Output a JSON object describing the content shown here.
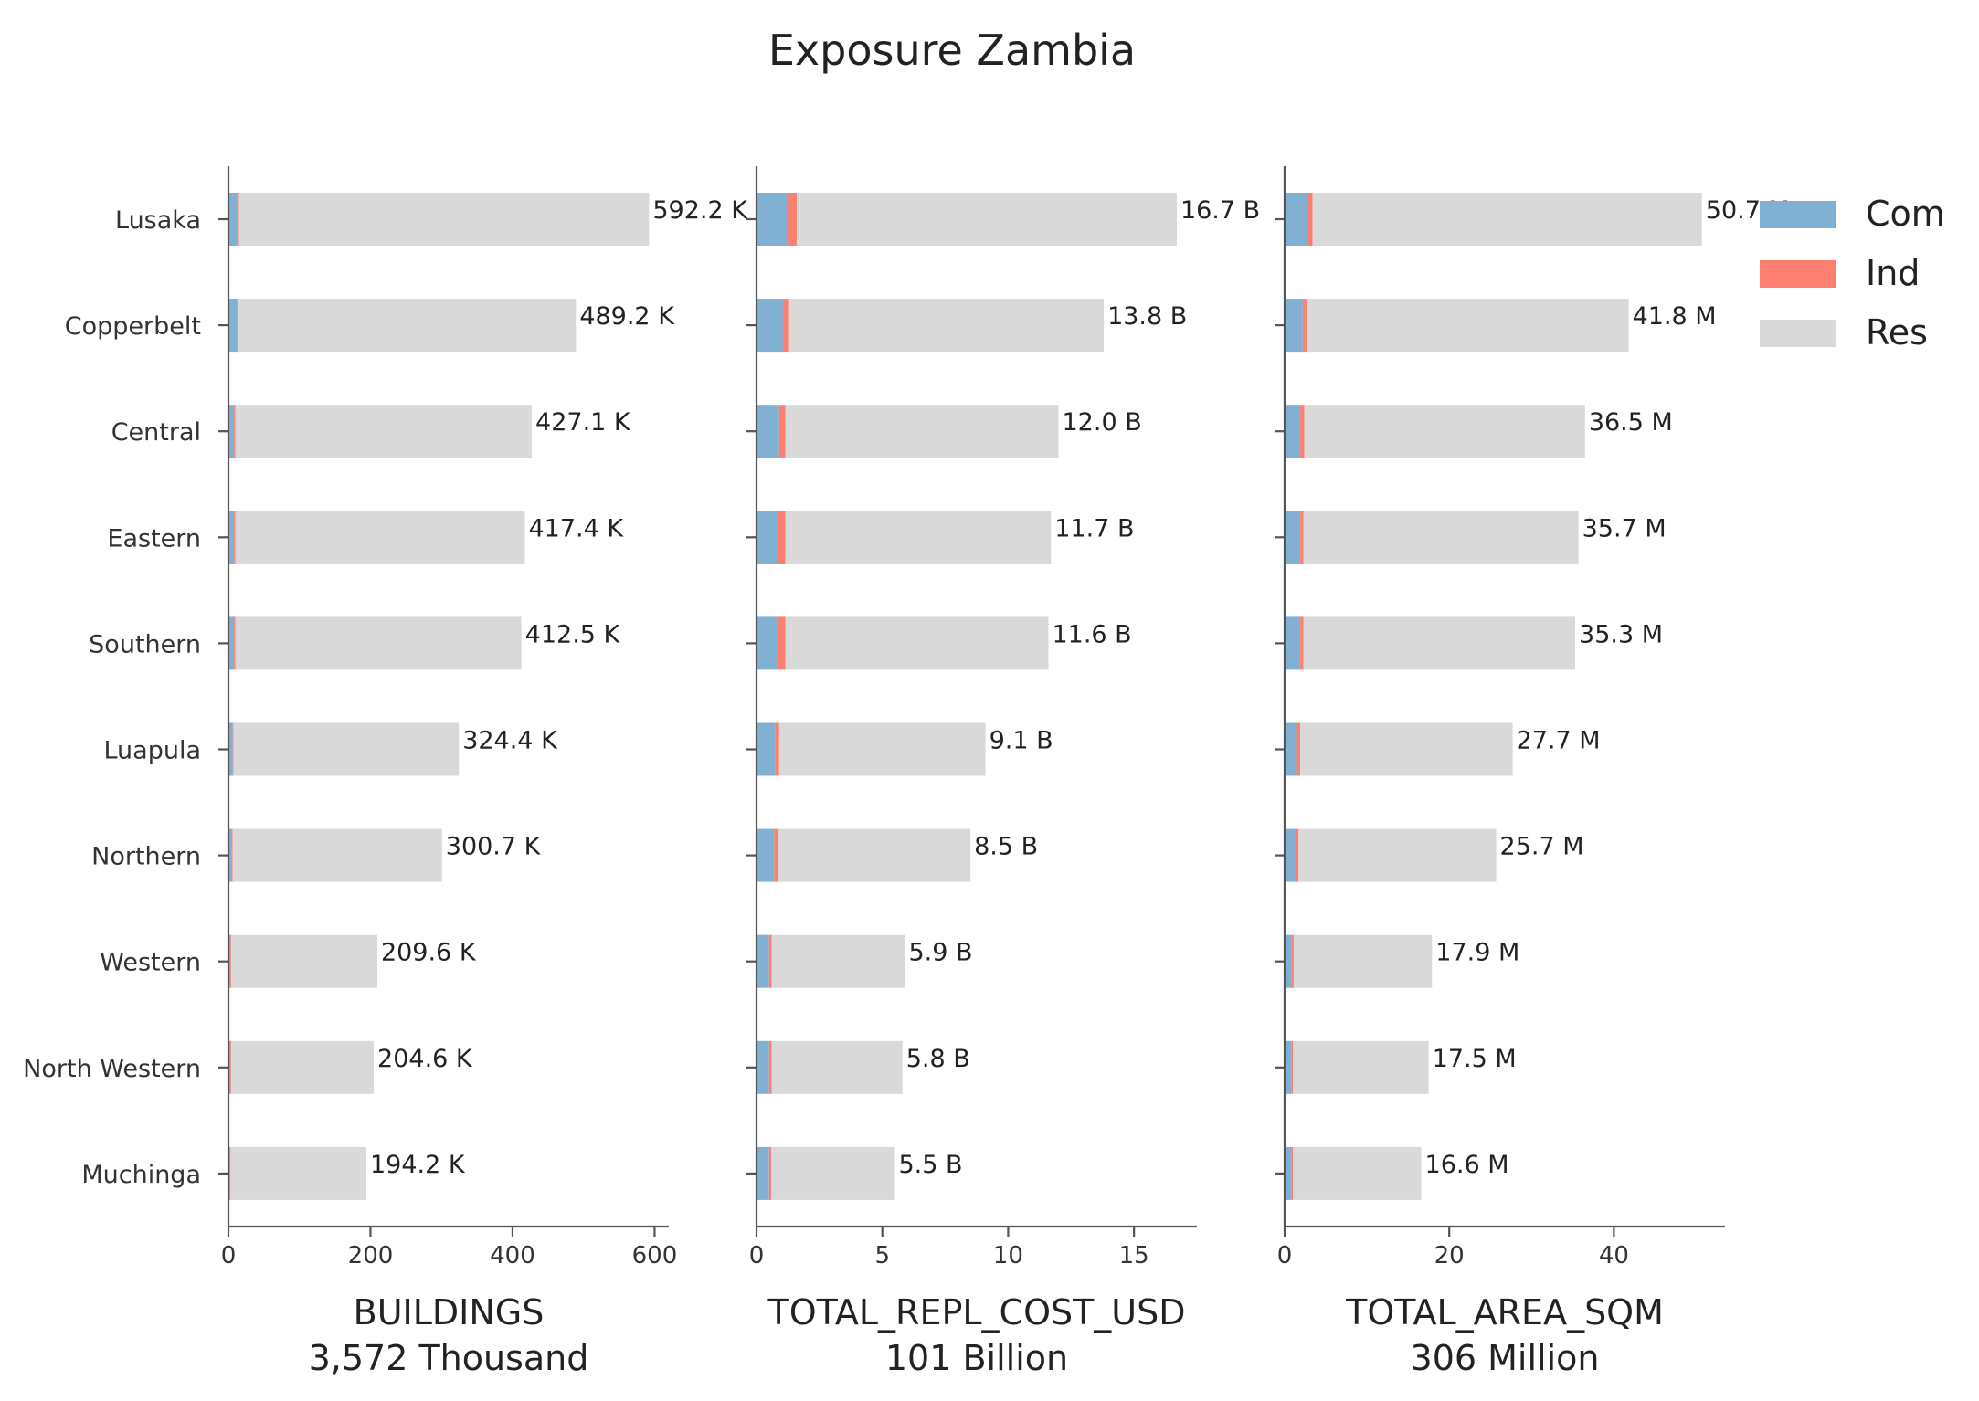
{
  "title": "Exposure Zambia",
  "colors": {
    "Com": "#80b1d3",
    "Ind": "#fb8072",
    "Res": "#d9d9d9",
    "axis": "#555555"
  },
  "legend": [
    "Com",
    "Ind",
    "Res"
  ],
  "chart_data": [
    {
      "type": "bar",
      "orientation": "horizontal",
      "stacked": true,
      "xlabel": "BUILDINGS",
      "subtitle": "3,572 Thousand",
      "xlim": [
        0,
        620
      ],
      "xticks": [
        0,
        200,
        400,
        600
      ],
      "categories": [
        "Lusaka",
        "Copperbelt",
        "Central",
        "Eastern",
        "Southern",
        "Luapula",
        "Northern",
        "Western",
        "North Western",
        "Muchinga"
      ],
      "series": [
        {
          "name": "Com",
          "values": [
            12,
            12,
            8,
            8,
            8,
            6,
            5,
            3,
            3,
            2
          ]
        },
        {
          "name": "Ind",
          "values": [
            3,
            1,
            2,
            2,
            2,
            1,
            1,
            1,
            1,
            1
          ]
        },
        {
          "name": "Res",
          "values": [
            577.2,
            476.2,
            417.1,
            407.4,
            402.5,
            317.4,
            294.7,
            205.6,
            200.6,
            191.2
          ]
        }
      ],
      "labels": [
        "592.2 K",
        "489.2 K",
        "427.1 K",
        "417.4 K",
        "412.5 K",
        "324.4 K",
        "300.7 K",
        "209.6 K",
        "204.6 K",
        "194.2 K"
      ]
    },
    {
      "type": "bar",
      "orientation": "horizontal",
      "stacked": true,
      "xlabel": "TOTAL_REPL_COST_USD",
      "subtitle": "101 Billion",
      "xlim": [
        0,
        17.5
      ],
      "xticks": [
        0,
        5,
        10,
        15
      ],
      "categories": [
        "Lusaka",
        "Copperbelt",
        "Central",
        "Eastern",
        "Southern",
        "Luapula",
        "Northern",
        "Western",
        "North Western",
        "Muchinga"
      ],
      "series": [
        {
          "name": "Com",
          "values": [
            1.25,
            1.05,
            0.9,
            0.85,
            0.85,
            0.75,
            0.7,
            0.5,
            0.5,
            0.5
          ]
        },
        {
          "name": "Ind",
          "values": [
            0.35,
            0.25,
            0.25,
            0.3,
            0.3,
            0.15,
            0.15,
            0.1,
            0.1,
            0.08
          ]
        },
        {
          "name": "Res",
          "values": [
            15.1,
            12.5,
            10.85,
            10.55,
            10.45,
            8.2,
            7.65,
            5.3,
            5.2,
            4.92
          ]
        }
      ],
      "labels": [
        "16.7 B",
        "13.8 B",
        "12.0 B",
        "11.7 B",
        "11.6 B",
        "9.1 B",
        "8.5 B",
        "5.9 B",
        "5.8 B",
        "5.5 B"
      ]
    },
    {
      "type": "bar",
      "orientation": "horizontal",
      "stacked": true,
      "xlabel": "TOTAL_AREA_SQM",
      "subtitle": "306 Million",
      "xlim": [
        0,
        53.5
      ],
      "xticks": [
        0,
        20,
        40
      ],
      "categories": [
        "Lusaka",
        "Copperbelt",
        "Central",
        "Eastern",
        "Southern",
        "Luapula",
        "Northern",
        "Western",
        "North Western",
        "Muchinga"
      ],
      "series": [
        {
          "name": "Com",
          "values": [
            2.7,
            2.2,
            1.9,
            1.9,
            1.9,
            1.5,
            1.4,
            0.8,
            0.8,
            0.8
          ]
        },
        {
          "name": "Ind",
          "values": [
            0.7,
            0.5,
            0.5,
            0.4,
            0.4,
            0.4,
            0.3,
            0.3,
            0.2,
            0.2
          ]
        },
        {
          "name": "Res",
          "values": [
            47.3,
            39.1,
            34.1,
            33.4,
            33.0,
            25.8,
            24.0,
            16.8,
            16.5,
            15.6
          ]
        }
      ],
      "labels": [
        "50.7 M",
        "41.8 M",
        "36.5 M",
        "35.7 M",
        "35.3 M",
        "27.7 M",
        "25.7 M",
        "17.9 M",
        "17.5 M",
        "16.6 M"
      ]
    }
  ]
}
